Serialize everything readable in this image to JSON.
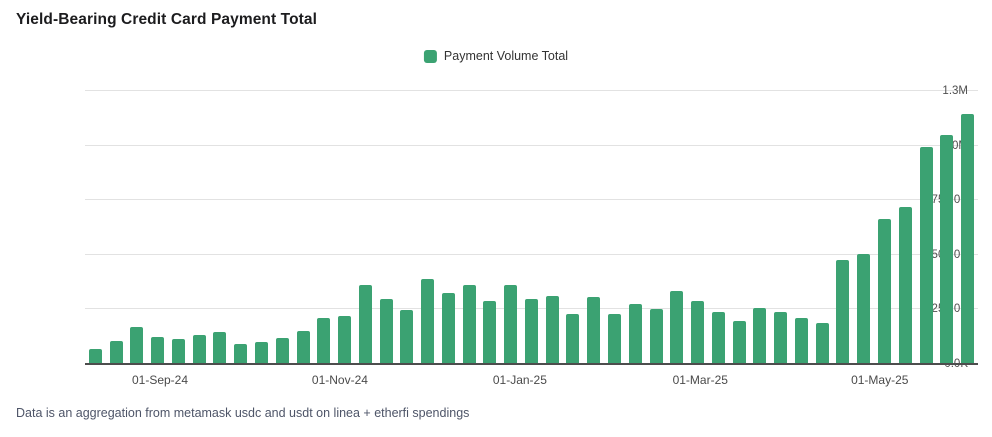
{
  "title": "Yield-Bearing Credit Card Payment Total",
  "footer_note": "Data is an aggregation from metamask usdc and usdt on linea + etherfi spendings",
  "legend": {
    "label": "Payment Volume Total",
    "swatch_color": "#3ba272"
  },
  "chart_data": {
    "type": "bar",
    "title": "Yield-Bearing Credit Card Payment Total",
    "series": [
      {
        "name": "Payment Volume Total",
        "values": [
          70000,
          105000,
          168000,
          122000,
          114000,
          132000,
          146000,
          92000,
          100000,
          118000,
          150000,
          212000,
          222000,
          362000,
          296000,
          246000,
          390000,
          325000,
          364000,
          289000,
          360000,
          296000,
          310000,
          228000,
          305000,
          229000,
          273000,
          252000,
          333000,
          288000,
          237000,
          196000,
          256000,
          236000,
          209000,
          186000,
          478000,
          502000,
          665000,
          718000,
          995000,
          1050000,
          1145000
        ]
      }
    ],
    "x_interval": "weekly",
    "x_tick_labels": [
      "01-Sep-24",
      "01-Nov-24",
      "01-Jan-25",
      "01-Mar-25",
      "01-May-25"
    ],
    "x_tick_positions_pct": [
      8.4,
      28.55,
      48.7,
      68.9,
      89.0
    ],
    "y_tick_labels": [
      "0.0K",
      "250.0K",
      "500.0K",
      "750.0K",
      "1.0M",
      "1.3M"
    ],
    "y_axis_max": 1250000,
    "ylim": [
      0,
      1250000
    ],
    "grid": true,
    "legend_position": "top-center",
    "bar_color": "#3ba272",
    "gridline_color": "#e2e2e2",
    "axis_line_color": "#4d4d4d"
  }
}
